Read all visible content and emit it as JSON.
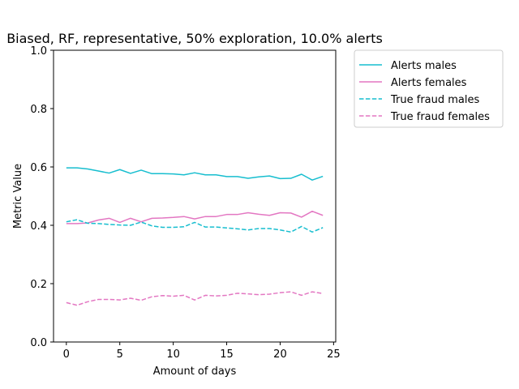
{
  "chart_data": {
    "type": "line",
    "title": "Biased, RF, representative, 50% exploration, 10.0% alerts",
    "xlabel": "Amount of days",
    "ylabel": "Metric Value",
    "xlim": [
      -1.2,
      25.2
    ],
    "ylim": [
      0.0,
      1.0
    ],
    "xticks": [
      0,
      5,
      10,
      15,
      20,
      25
    ],
    "xtick_labels": [
      "0",
      "5",
      "10",
      "15",
      "20",
      "25"
    ],
    "yticks": [
      0.0,
      0.2,
      0.4,
      0.6,
      0.8,
      1.0
    ],
    "ytick_labels": [
      "0.0",
      "0.2",
      "0.4",
      "0.6",
      "0.8",
      "1.0"
    ],
    "grid": false,
    "legend_position": "outside-top-right",
    "x": [
      0,
      1,
      2,
      3,
      4,
      5,
      6,
      7,
      8,
      9,
      10,
      11,
      12,
      13,
      14,
      15,
      16,
      17,
      18,
      19,
      20,
      21,
      22,
      23,
      24
    ],
    "series": [
      {
        "name": "Alerts males",
        "color": "#17becf",
        "style": "solid",
        "values": [
          0.597,
          0.597,
          0.593,
          0.586,
          0.579,
          0.591,
          0.578,
          0.589,
          0.577,
          0.577,
          0.576,
          0.573,
          0.58,
          0.573,
          0.573,
          0.567,
          0.567,
          0.561,
          0.566,
          0.569,
          0.56,
          0.561,
          0.575,
          0.555,
          0.568
        ]
      },
      {
        "name": "Alerts females",
        "color": "#e377c2",
        "style": "solid",
        "values": [
          0.406,
          0.406,
          0.408,
          0.418,
          0.424,
          0.41,
          0.424,
          0.412,
          0.424,
          0.425,
          0.427,
          0.43,
          0.422,
          0.43,
          0.43,
          0.437,
          0.437,
          0.443,
          0.438,
          0.434,
          0.443,
          0.442,
          0.428,
          0.448,
          0.434
        ]
      },
      {
        "name": "True fraud males",
        "color": "#17becf",
        "style": "dashed",
        "values": [
          0.412,
          0.419,
          0.407,
          0.406,
          0.403,
          0.401,
          0.4,
          0.411,
          0.398,
          0.393,
          0.393,
          0.395,
          0.41,
          0.394,
          0.394,
          0.391,
          0.388,
          0.384,
          0.389,
          0.389,
          0.384,
          0.377,
          0.396,
          0.377,
          0.392
        ]
      },
      {
        "name": "True fraud females",
        "color": "#e377c2",
        "style": "dashed",
        "values": [
          0.135,
          0.126,
          0.138,
          0.146,
          0.146,
          0.144,
          0.15,
          0.143,
          0.155,
          0.159,
          0.157,
          0.16,
          0.144,
          0.16,
          0.158,
          0.16,
          0.167,
          0.165,
          0.162,
          0.164,
          0.169,
          0.172,
          0.16,
          0.172,
          0.166
        ]
      }
    ]
  }
}
